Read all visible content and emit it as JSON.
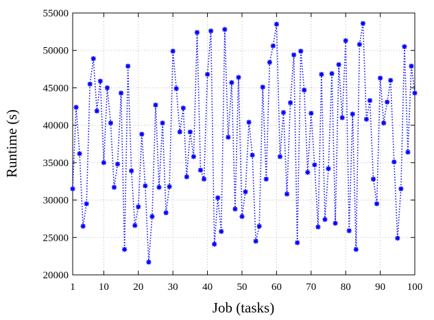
{
  "chart_data": {
    "type": "line",
    "title": "",
    "xlabel": "Job (tasks)",
    "ylabel": "Runtime (s)",
    "xlim": [
      1,
      100
    ],
    "ylim": [
      20000,
      55000
    ],
    "xticks": [
      1,
      10,
      20,
      30,
      40,
      50,
      60,
      70,
      80,
      90,
      100
    ],
    "yticks": [
      20000,
      25000,
      30000,
      35000,
      40000,
      45000,
      50000,
      55000
    ],
    "grid": true,
    "legend": "none",
    "series_color": "#0000ff",
    "marker": "asterisk",
    "line_style": "dotted",
    "x": [
      1,
      2,
      3,
      4,
      5,
      6,
      7,
      8,
      9,
      10,
      11,
      12,
      13,
      14,
      15,
      16,
      17,
      18,
      19,
      20,
      21,
      22,
      23,
      24,
      25,
      26,
      27,
      28,
      29,
      30,
      31,
      32,
      33,
      34,
      35,
      36,
      37,
      38,
      39,
      40,
      41,
      42,
      43,
      44,
      45,
      46,
      47,
      48,
      49,
      50,
      51,
      52,
      53,
      54,
      55,
      56,
      57,
      58,
      59,
      60,
      61,
      62,
      63,
      64,
      65,
      66,
      67,
      68,
      69,
      70,
      71,
      72,
      73,
      74,
      75,
      76,
      77,
      78,
      79,
      80,
      81,
      82,
      83,
      84,
      85,
      86,
      87,
      88,
      89,
      90,
      91,
      92,
      93,
      94,
      95,
      96,
      97,
      98,
      99,
      100
    ],
    "y": [
      31500,
      42400,
      36200,
      26500,
      29500,
      45500,
      48900,
      41900,
      45900,
      35000,
      45000,
      40300,
      31700,
      34800,
      44300,
      23400,
      47900,
      33900,
      26600,
      29100,
      38800,
      31900,
      21700,
      27800,
      42700,
      31700,
      40300,
      28300,
      31800,
      49900,
      44900,
      39100,
      42300,
      33100,
      39100,
      35800,
      52400,
      34000,
      32800,
      46800,
      52600,
      24100,
      30300,
      25800,
      52800,
      38400,
      45700,
      28800,
      46400,
      27800,
      31100,
      40400,
      36000,
      24500,
      26500,
      45100,
      32800,
      48400,
      50600,
      53500,
      35800,
      41700,
      30800,
      43000,
      49400,
      24300,
      49900,
      44700,
      33700,
      41600,
      34700,
      26400,
      46800,
      27400,
      34200,
      46900,
      26900,
      48100,
      41000,
      51300,
      25900,
      41500,
      23400,
      50800,
      53600,
      40800,
      43300,
      32800,
      29500,
      46300,
      40300,
      43100,
      46000,
      35100,
      24900,
      31500,
      50500,
      36400,
      47900,
      44300
    ]
  }
}
